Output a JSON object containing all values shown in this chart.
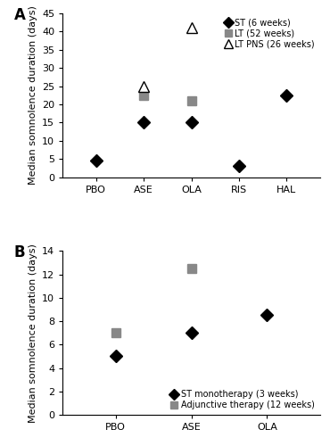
{
  "panel_A": {
    "categories": [
      "PBO",
      "ASE",
      "OLA",
      "RIS",
      "HAL"
    ],
    "ST_6weeks": [
      4.5,
      15,
      15,
      3,
      22.5
    ],
    "LT_52weeks": [
      null,
      22.5,
      21,
      null,
      null
    ],
    "LT_PNS_26weeks": [
      null,
      25,
      41,
      null,
      null
    ],
    "ylim": [
      0,
      45
    ],
    "yticks": [
      0,
      5,
      10,
      15,
      20,
      25,
      30,
      35,
      40,
      45
    ],
    "ylabel": "Median somnolence duration (days)",
    "label": "A",
    "legend": {
      "ST": "ST (6 weeks)",
      "LT": "LT (52 weeks)",
      "LT_PNS": "LT PNS (26 weeks)"
    }
  },
  "panel_B": {
    "categories": [
      "PBO",
      "ASE",
      "OLA"
    ],
    "ST_mono_3weeks": [
      5,
      7,
      8.5
    ],
    "Adj_12weeks": [
      7,
      12.5,
      null
    ],
    "ylim": [
      0,
      14
    ],
    "yticks": [
      0,
      2,
      4,
      6,
      8,
      10,
      12,
      14
    ],
    "ylabel": "Median somnolence duration (days)",
    "label": "B",
    "legend": {
      "ST": "ST monotherapy (3 weeks)",
      "Adj": "Adjunctive therapy (12 weeks)"
    }
  },
  "ST_color": "#000000",
  "LT_color": "#888888",
  "marker_size": 7,
  "triangle_size": 9,
  "tick_fontsize": 8,
  "label_fontsize": 8,
  "panel_label_fontsize": 12
}
